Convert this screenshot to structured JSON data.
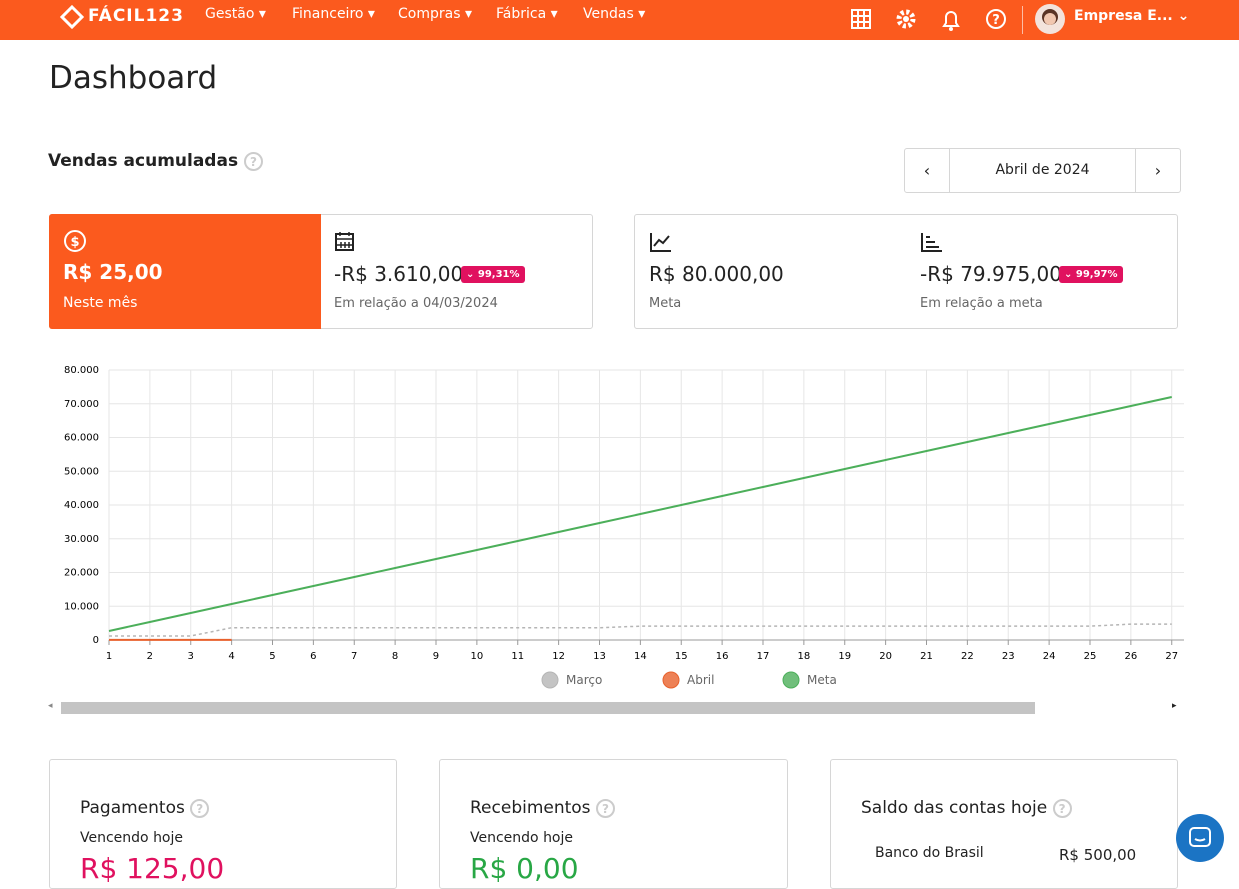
{
  "nav": {
    "logo": "FÁCIL123",
    "menu": [
      "Gestão",
      "Financeiro",
      "Compras",
      "Fábrica",
      "Vendas"
    ],
    "user": "Empresa E..."
  },
  "page_title": "Dashboard",
  "section": {
    "title": "Vendas acumuladas",
    "period": "Abril de 2024"
  },
  "cards": [
    {
      "value": "R$ 25,00",
      "label": "Neste mês"
    },
    {
      "value": "-R$ 3.610,00",
      "badge": "99,31%",
      "label": "Em relação a 04/03/2024"
    },
    {
      "value": "R$ 80.000,00",
      "label": "Meta"
    },
    {
      "value": "-R$ 79.975,00",
      "badge": "99,97%",
      "label": "Em relação a meta"
    }
  ],
  "chart_data": {
    "type": "line",
    "x": [
      1,
      2,
      3,
      4,
      5,
      6,
      7,
      8,
      9,
      10,
      11,
      12,
      13,
      14,
      15,
      16,
      17,
      18,
      19,
      20,
      21,
      22,
      23,
      24,
      25,
      26,
      27
    ],
    "xlim": [
      1,
      27.3
    ],
    "xticks": [
      1,
      2,
      3,
      4,
      5,
      6,
      7,
      8,
      9,
      10,
      11,
      12,
      13,
      14,
      15,
      16,
      17,
      18,
      19,
      20,
      21,
      22,
      23,
      24,
      25,
      26,
      27
    ],
    "ylim": [
      0,
      80000
    ],
    "yticks": [
      0,
      {
        "value": 10000,
        "label": "10.000"
      },
      {
        "value": 20000,
        "label": "20.000"
      },
      {
        "value": 30000,
        "label": "30.000"
      },
      {
        "value": 40000,
        "label": "40.000"
      },
      {
        "value": 50000,
        "label": "50.000"
      },
      {
        "value": 60000,
        "label": "60.000"
      },
      {
        "value": 70000,
        "label": "70.000"
      },
      {
        "value": 80000,
        "label": "80.000"
      }
    ],
    "grid": true,
    "series": [
      {
        "name": "Março",
        "color": "#b5b5b5",
        "dashed": true,
        "values": [
          1200,
          1200,
          1200,
          3635,
          3635,
          3635,
          3635,
          3635,
          3635,
          3635,
          3635,
          3635,
          3635,
          4100,
          4100,
          4100,
          4100,
          4100,
          4100,
          4100,
          4100,
          4100,
          4100,
          4100,
          4100,
          4700,
          4700
        ]
      },
      {
        "name": "Abril",
        "color": "#e8612c",
        "values": [
          25,
          25,
          25,
          25,
          null,
          null,
          null,
          null,
          null,
          null,
          null,
          null,
          null,
          null,
          null,
          null,
          null,
          null,
          null,
          null,
          null,
          null,
          null,
          null,
          null,
          null,
          null
        ]
      },
      {
        "name": "Meta",
        "color": "#4caf5a",
        "values": [
          2667,
          5333,
          8000,
          10667,
          13333,
          16000,
          18667,
          21333,
          24000,
          26667,
          29333,
          32000,
          34667,
          37333,
          40000,
          42667,
          45333,
          48000,
          50667,
          53333,
          56000,
          58667,
          61333,
          64000,
          66667,
          69333,
          72000
        ]
      }
    ]
  },
  "bottom": [
    {
      "title": "Pagamentos",
      "subtitle": "Vencendo hoje",
      "value": "R$ 125,00"
    },
    {
      "title": "Recebimentos",
      "subtitle": "Vencendo hoje",
      "value": "R$ 0,00"
    },
    {
      "title": "Saldo das contas hoje",
      "account": "Banco do Brasil",
      "value": "R$ 500,00"
    }
  ]
}
